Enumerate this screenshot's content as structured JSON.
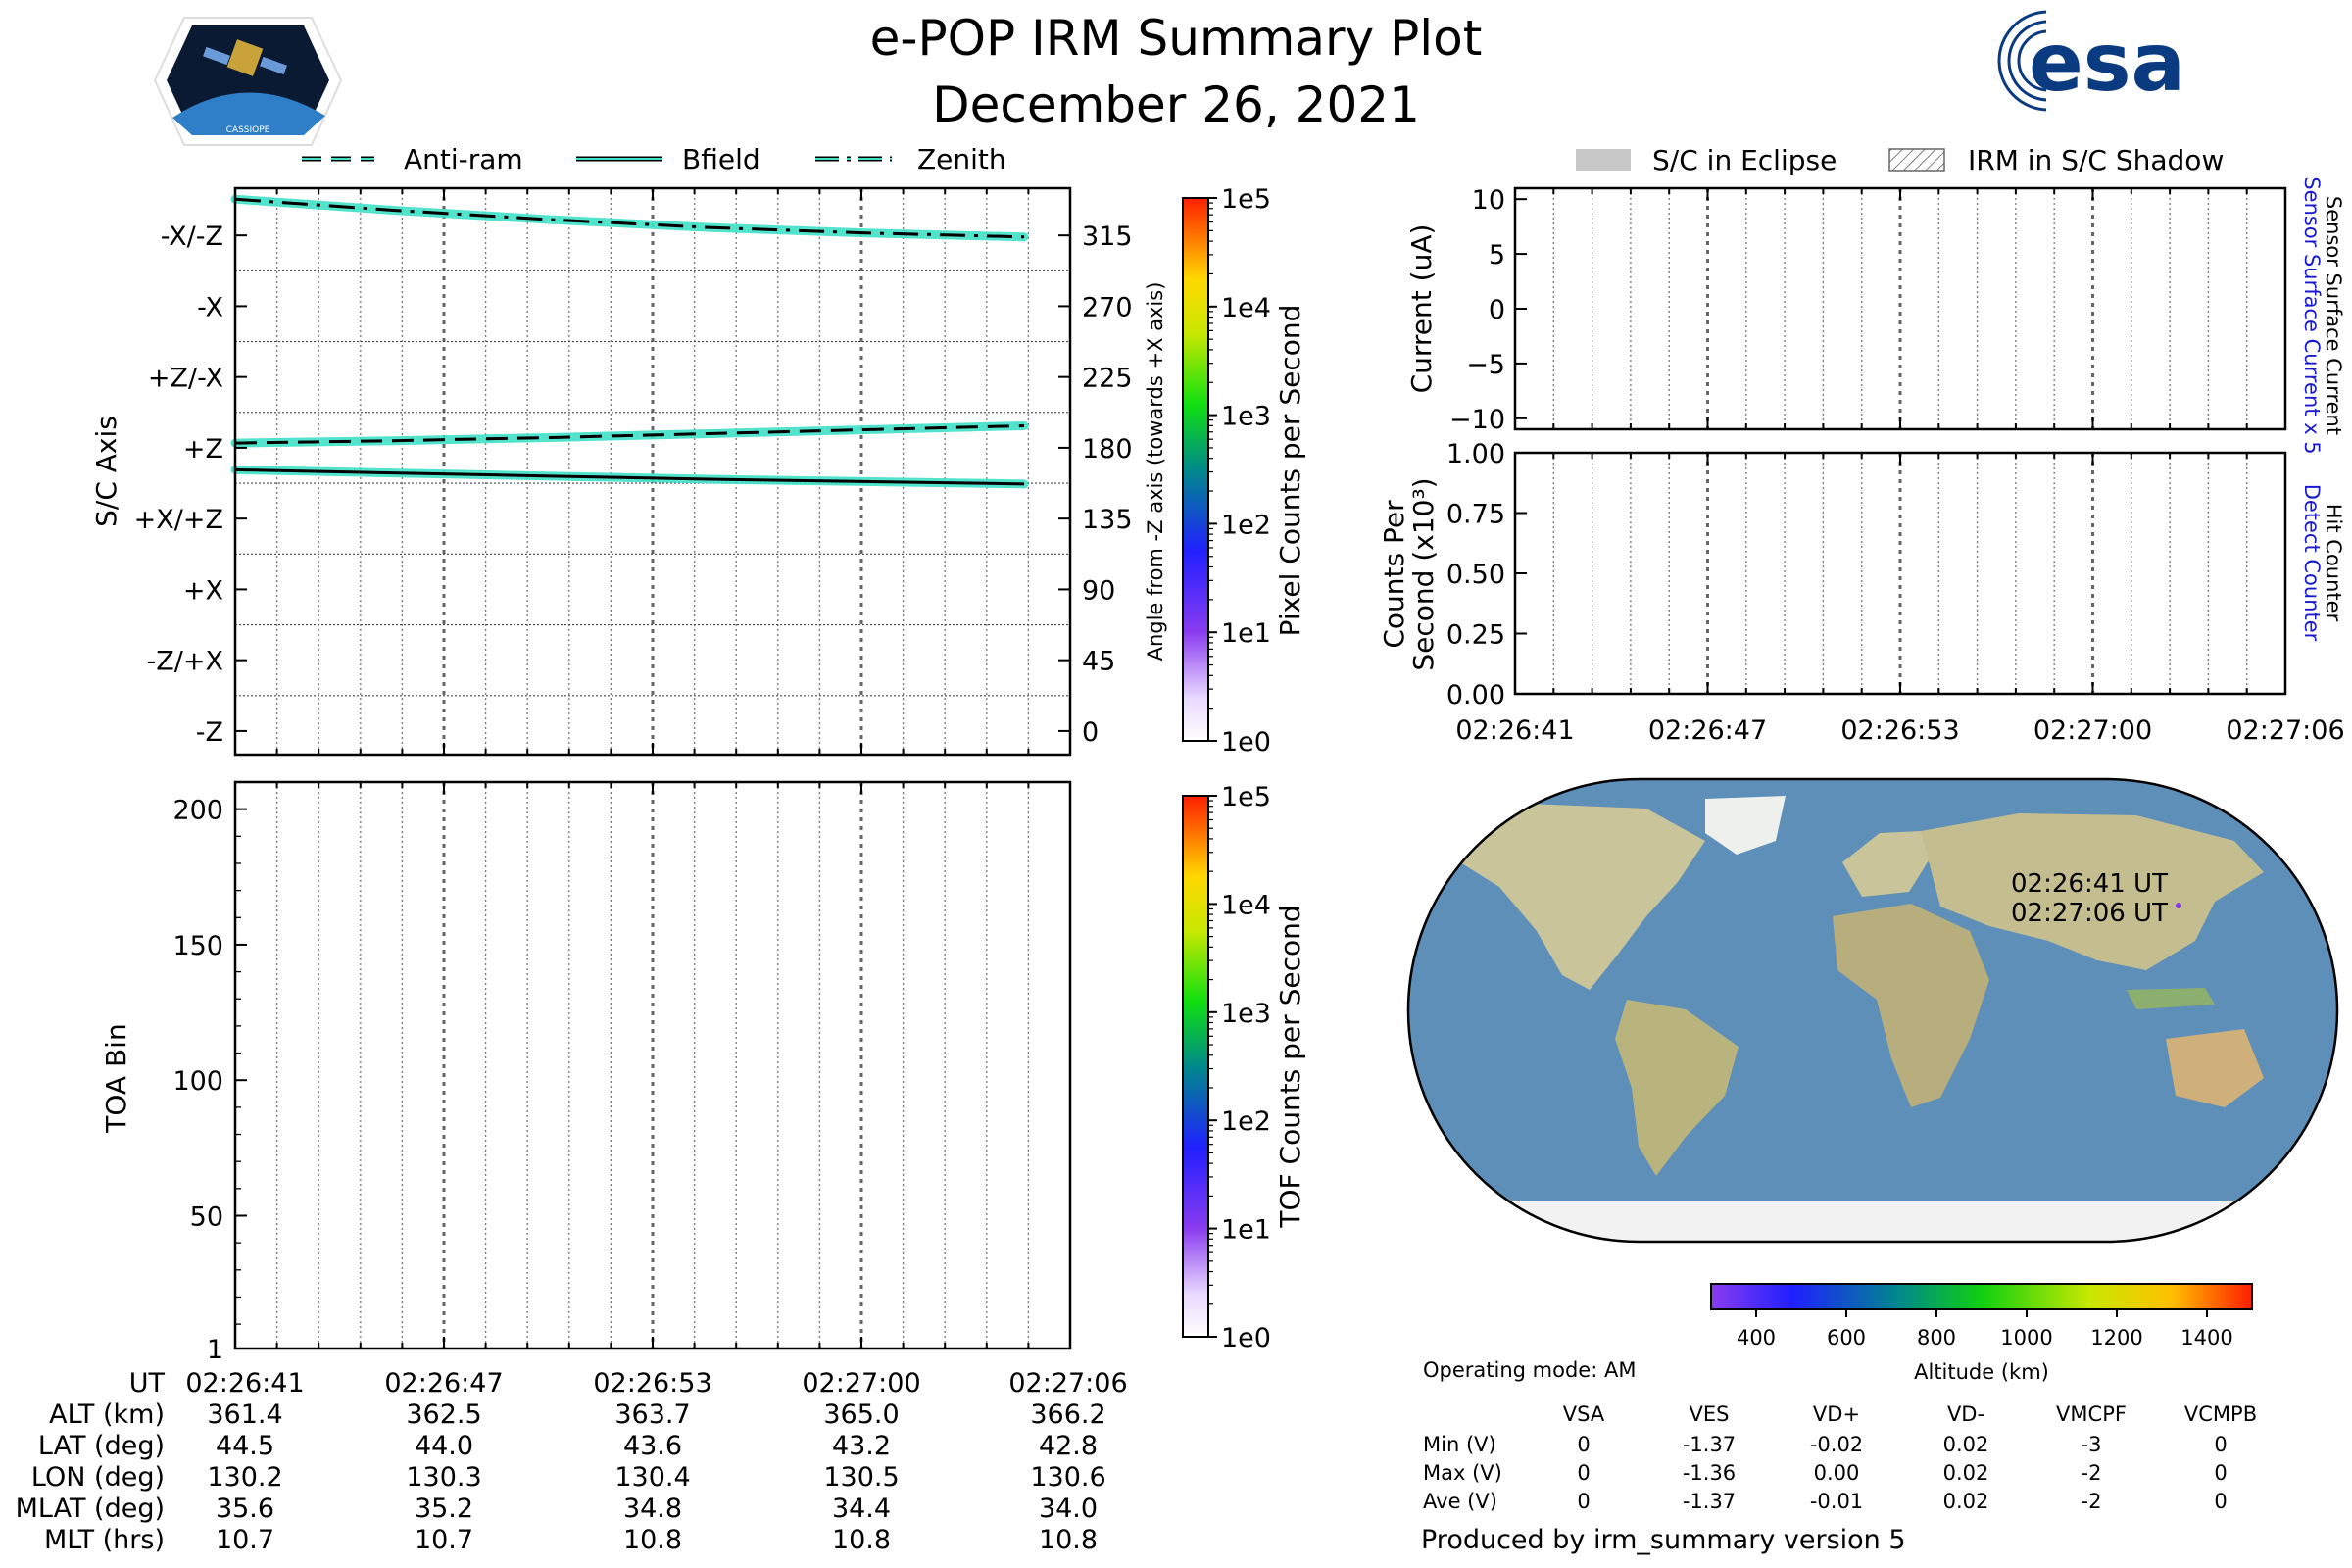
{
  "title": "e-POP IRM Summary Plot",
  "subtitle": "December 26, 2021",
  "logo_left_text": "CASSIOPE",
  "logo_right_text": "esa",
  "legend_left": [
    "Anti-ram",
    "Bfield",
    "Zenith"
  ],
  "legend_right": [
    "S/C in Eclipse",
    "IRM in S/C Shadow"
  ],
  "colors": {
    "trace": "#3fe0c8",
    "trace_edge": "#000000",
    "eclipse": "#c8c8c8",
    "ocean": "#5e8fb8",
    "land": "#c9c49a",
    "ice": "#f2f2f2"
  },
  "chart_data": [
    {
      "type": "line",
      "name": "sc-axis",
      "ylabel": "S/C Axis",
      "y2label": "Angle from -Z axis (towards +X axis)",
      "ylim": [
        -15,
        345
      ],
      "yticks_left": [
        "-Z",
        "-Z/+X",
        "+X",
        "+X/+Z",
        "+Z",
        "+Z/-X",
        "-X",
        "-X/-Z"
      ],
      "yticks_right": [
        0,
        45,
        90,
        135,
        180,
        225,
        270,
        315
      ],
      "x_ticks": [
        "02:26:41",
        "02:26:47",
        "02:26:53",
        "02:27:00",
        "02:27:06"
      ],
      "x_range": [
        0,
        25
      ],
      "series": [
        {
          "name": "Zenith",
          "style": "dashdot",
          "x": [
            0,
            5,
            10,
            15,
            20,
            25
          ],
          "y": [
            338,
            331,
            325,
            320,
            316.5,
            314
          ]
        },
        {
          "name": "Anti-ram",
          "style": "dash",
          "x": [
            0,
            5,
            10,
            15,
            20,
            25
          ],
          "y": [
            183,
            184.5,
            186.5,
            189,
            191.5,
            194
          ]
        },
        {
          "name": "Bfield",
          "style": "solid",
          "x": [
            0,
            5,
            10,
            15,
            20,
            25
          ],
          "y": [
            166,
            164,
            162,
            160,
            158.5,
            157
          ]
        }
      ],
      "colorbar": {
        "label": "Pixel Counts per Second",
        "ticks": [
          "1e0",
          "1e1",
          "1e2",
          "1e3",
          "1e4",
          "1e5"
        ]
      }
    },
    {
      "type": "heatmap",
      "name": "toa",
      "ylabel": "TOA Bin",
      "ylim": [
        1,
        210
      ],
      "yticks": [
        1,
        50,
        100,
        150,
        200
      ],
      "x_ticks": [
        "02:26:41",
        "02:26:47",
        "02:26:53",
        "02:27:00",
        "02:27:06"
      ],
      "colorbar": {
        "label": "TOF Counts per Second",
        "ticks": [
          "1e0",
          "1e1",
          "1e2",
          "1e3",
          "1e4",
          "1e5"
        ]
      }
    },
    {
      "type": "line",
      "name": "current",
      "ylabel": "Current (uA)",
      "right_label_1": "Sensor Surface Current x 5",
      "right_label_2": "Sensor Surface Current",
      "ylim": [
        -11,
        11
      ],
      "yticks": [
        "10",
        "5",
        "0",
        "−5",
        "−10"
      ]
    },
    {
      "type": "line",
      "name": "counts",
      "ylabel_1": "Counts Per",
      "ylabel_2": "Second (x10³)",
      "right_label_1": "Detect Counter",
      "right_label_2": "Hit Counter",
      "ylim": [
        0,
        1
      ],
      "yticks": [
        "1.00",
        "0.75",
        "0.50",
        "0.25",
        "0.00"
      ],
      "x_ticks": [
        "02:26:41",
        "02:26:47",
        "02:26:53",
        "02:27:00",
        "02:27:06"
      ]
    },
    {
      "type": "scatter",
      "name": "map",
      "annotations": [
        "02:26:41 UT",
        "02:27:06 UT"
      ],
      "colorbar": {
        "label": "Altitude (km)",
        "ticks": [
          400,
          600,
          800,
          1000,
          1200,
          1400
        ],
        "range": [
          300,
          1500
        ]
      }
    }
  ],
  "ephemeris": {
    "labels": [
      "UT",
      "ALT (km)",
      "LAT (deg)",
      "LON (deg)",
      "MLAT (deg)",
      "MLT (hrs)"
    ],
    "columns": [
      [
        "02:26:41",
        "361.4",
        "44.5",
        "130.2",
        "35.6",
        "10.7"
      ],
      [
        "02:26:47",
        "362.5",
        "44.0",
        "130.3",
        "35.2",
        "10.7"
      ],
      [
        "02:26:53",
        "363.7",
        "43.6",
        "130.4",
        "34.8",
        "10.8"
      ],
      [
        "02:27:00",
        "365.0",
        "43.2",
        "130.5",
        "34.4",
        "10.8"
      ],
      [
        "02:27:06",
        "366.2",
        "42.8",
        "130.6",
        "34.0",
        "10.8"
      ]
    ]
  },
  "voltage": {
    "mode": "Operating mode: AM",
    "headers": [
      "VSA",
      "VES",
      "VD+",
      "VD-",
      "VMCPF",
      "VCMPB"
    ],
    "rows": [
      {
        "label": "Min (V)",
        "values": [
          "0",
          "-1.37",
          "-0.02",
          "0.02",
          "-3",
          "0"
        ]
      },
      {
        "label": "Max (V)",
        "values": [
          "0",
          "-1.36",
          "0.00",
          "0.02",
          "-2",
          "0"
        ]
      },
      {
        "label": "Ave (V)",
        "values": [
          "0",
          "-1.37",
          "-0.01",
          "0.02",
          "-2",
          "0"
        ]
      }
    ]
  },
  "footer": "Produced by irm_summary version 5"
}
